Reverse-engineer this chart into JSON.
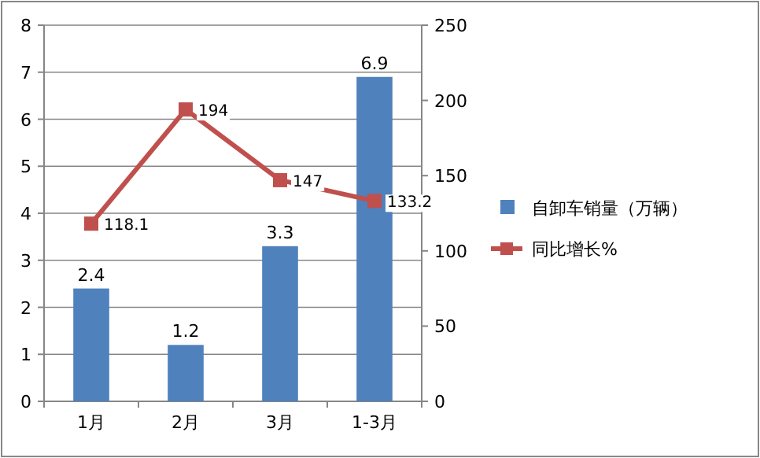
{
  "chart_data": {
    "type": "bar",
    "categories": [
      "1月",
      "2月",
      "3月",
      "1-3月"
    ],
    "series": [
      {
        "name": "自卸车销量（万辆）",
        "color": "#4f81bd",
        "values": [
          2.4,
          1.2,
          3.3,
          6.9
        ]
      },
      {
        "name": "同比增长%",
        "type": "line",
        "axis": "y2",
        "color": "#c0504d",
        "marker": "square",
        "values": [
          118.1,
          194,
          147,
          133.2
        ]
      }
    ],
    "ylim": [
      0,
      8
    ],
    "yticks": [
      0,
      1,
      2,
      3,
      4,
      5,
      6,
      7,
      8
    ],
    "y2lim": [
      0,
      250
    ],
    "y2ticks": [
      0,
      50,
      100,
      150,
      200,
      250
    ],
    "grid": "y",
    "legend": "right",
    "data_labels": true
  }
}
